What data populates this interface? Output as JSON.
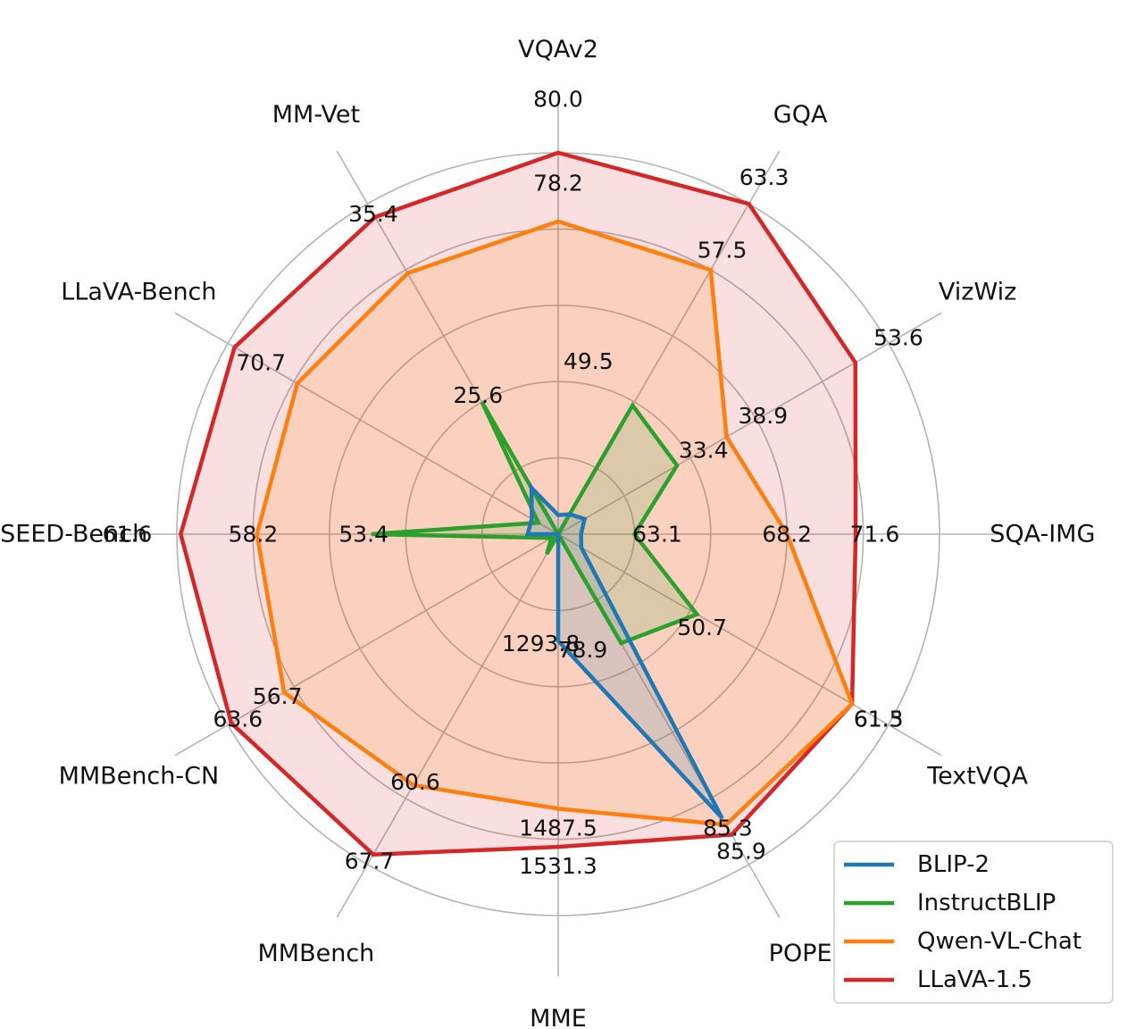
{
  "chart_data": {
    "type": "radar",
    "title": "",
    "axes": [
      "VQAv2",
      "GQA",
      "VizWiz",
      "SQA-IMG",
      "TextVQA",
      "POPE",
      "MME",
      "MMBench",
      "MMBench-CN",
      "SEED-Bench",
      "LLaVA-Bench",
      "MM-Vet"
    ],
    "series": [
      {
        "name": "BLIP-2",
        "color": "#1f77b4",
        "values": [
          41.0,
          41.0,
          19.6,
          61.0,
          42.5,
          85.3,
          1293.8,
          null,
          null,
          46.4,
          38.1,
          22.4
        ],
        "normalized": [
          0.05,
          0.06,
          0.08,
          0.06,
          0.07,
          0.86,
          0.28,
          0.0,
          0.0,
          0.08,
          0.08,
          0.14
        ]
      },
      {
        "name": "InstructBLIP",
        "color": "#2ca02c",
        "values": [
          null,
          49.5,
          33.4,
          63.1,
          50.7,
          78.9,
          null,
          36.0,
          null,
          53.4,
          60.9,
          25.6
        ],
        "normalized": [
          0.0,
          0.39,
          0.36,
          0.2,
          0.42,
          0.33,
          0.0,
          0.06,
          0.02,
          0.49,
          0.06,
          0.4
        ]
      },
      {
        "name": "Qwen-VL-Chat",
        "color": "#ff7f0e",
        "values": [
          78.2,
          57.5,
          38.9,
          68.2,
          61.5,
          null,
          1487.5,
          60.6,
          56.7,
          58.2,
          null,
          null
        ],
        "normalized": [
          0.82,
          0.8,
          0.51,
          0.6,
          0.89,
          0.88,
          0.72,
          0.76,
          0.83,
          0.79,
          0.79,
          0.79
        ]
      },
      {
        "name": "LLaVA-1.5",
        "color": "#d62728",
        "values": [
          80.0,
          63.3,
          53.6,
          71.6,
          61.3,
          85.9,
          1531.3,
          67.7,
          63.6,
          61.6,
          70.7,
          35.4
        ],
        "normalized": [
          1.0,
          1.0,
          0.9,
          0.78,
          0.89,
          0.91,
          0.82,
          0.97,
          0.99,
          0.99,
          0.98,
          0.96
        ]
      }
    ],
    "value_labels": [
      {
        "text": "80.0",
        "axis": 0,
        "r": 1.14
      },
      {
        "text": "78.2",
        "axis": 0,
        "r": 0.92
      },
      {
        "text": "49.5",
        "axis": 0.33,
        "r": 0.46
      },
      {
        "text": "63.3",
        "axis": 1,
        "r": 1.08
      },
      {
        "text": "57.5",
        "axis": 1,
        "r": 0.86
      },
      {
        "text": "53.6",
        "axis": 2,
        "r": 1.03
      },
      {
        "text": "38.9",
        "axis": 2,
        "r": 0.62
      },
      {
        "text": "33.4",
        "axis": 2,
        "r": 0.44
      },
      {
        "text": "71.6",
        "axis": 3,
        "r": 0.83
      },
      {
        "text": "68.2",
        "axis": 3,
        "r": 0.6
      },
      {
        "text": "63.1",
        "axis": 3,
        "r": 0.26
      },
      {
        "text": "61.5",
        "axis": 4,
        "r": 0.97
      },
      {
        "text": "61.3",
        "axis": 4,
        "r": 0.97
      },
      {
        "text": "50.7",
        "axis": 4.1,
        "r": 0.45
      },
      {
        "text": "85.3",
        "axis": 5,
        "r": 0.89
      },
      {
        "text": "85.9",
        "axis": 5,
        "r": 0.96
      },
      {
        "text": "78.9",
        "axis": 5.6,
        "r": 0.31
      },
      {
        "text": "1487.5",
        "axis": 6,
        "r": 0.77
      },
      {
        "text": "1531.3",
        "axis": 6,
        "r": 0.87
      },
      {
        "text": "1293.8",
        "axis": 6.3,
        "r": 0.29
      },
      {
        "text": "60.6",
        "axis": 7,
        "r": 0.75
      },
      {
        "text": "67.7",
        "axis": 7,
        "r": 0.99
      },
      {
        "text": "56.7",
        "axis": 8,
        "r": 0.85
      },
      {
        "text": "63.6",
        "axis": 8,
        "r": 0.97
      },
      {
        "text": "58.2",
        "axis": 9,
        "r": 0.8
      },
      {
        "text": "61.6",
        "axis": 9,
        "r": 1.13
      },
      {
        "text": "53.4",
        "axis": 9,
        "r": 0.51
      },
      {
        "text": "70.7",
        "axis": 10,
        "r": 0.9
      },
      {
        "text": "35.4",
        "axis": 11,
        "r": 0.97
      },
      {
        "text": "25.6",
        "axis": 11,
        "r": 0.42
      }
    ],
    "grid": true,
    "legend_position": "bottom-right"
  }
}
